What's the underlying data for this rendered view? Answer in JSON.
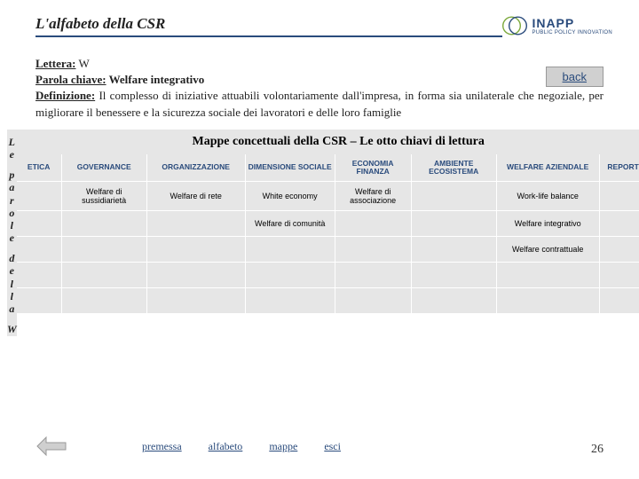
{
  "header": {
    "title": "L'alfabeto della CSR",
    "logo_name": "INAPP",
    "logo_sub": "PUBLIC POLICY INNOVATION"
  },
  "back_label": "back",
  "definition": {
    "lettera_label": "Lettera:",
    "lettera_value": "W",
    "parola_label": "Parola chiave:",
    "parola_value": "Welfare integrativo",
    "def_label": "Definizione:",
    "def_value": "Il complesso di iniziative attuabili volontariamente dall'impresa, in forma sia unilaterale che negoziale, per migliorare il benessere e la sicurezza sociale dei lavoratori e delle loro famiglie"
  },
  "side": {
    "le": [
      "L",
      "e"
    ],
    "parole": [
      "p",
      "a",
      "r",
      "o",
      "l",
      "e"
    ],
    "della": [
      "d",
      "e",
      "l",
      "l",
      "a"
    ],
    "w": "W"
  },
  "map_title": "Mappe concettuali della CSR – Le otto chiavi di lettura",
  "headers": [
    "ETICA",
    "GOVERNANCE",
    "ORGANIZZAZIONE",
    "DIMENSIONE SOCIALE",
    "ECONOMIA FINANZA",
    "AMBIENTE ECOSISTEMA",
    "WELFARE AZIENDALE",
    "REPORTING"
  ],
  "rows": [
    [
      "",
      "Welfare di sussidiarietà",
      "Welfare di rete",
      "White economy",
      "Welfare di associazione",
      "",
      "Work-life balance",
      ""
    ],
    [
      "",
      "",
      "",
      "Welfare di comunità",
      "",
      "",
      "Welfare integrativo",
      ""
    ],
    [
      "",
      "",
      "",
      "",
      "",
      "",
      "Welfare contrattuale",
      ""
    ],
    [
      "",
      "",
      "",
      "",
      "",
      "",
      "",
      ""
    ],
    [
      "",
      "",
      "",
      "",
      "",
      "",
      "",
      ""
    ]
  ],
  "nav": [
    "premessa",
    "alfabeto",
    "mappe",
    "esci"
  ],
  "page": "26",
  "colors": {
    "accent": "#2a4b7c",
    "cell_bg": "#e6e6e6"
  }
}
